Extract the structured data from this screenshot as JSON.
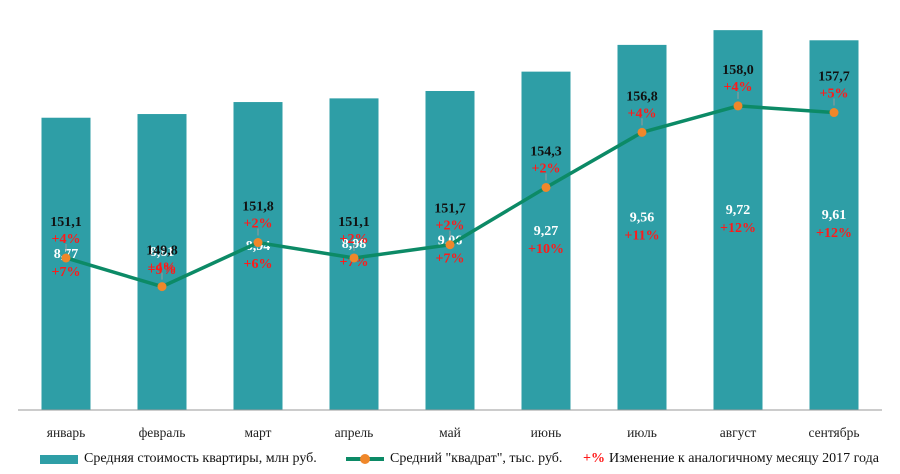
{
  "chart_data": {
    "type": "bar+line",
    "categories": [
      "январь",
      "февраль",
      "март",
      "апрель",
      "май",
      "июнь",
      "июль",
      "август",
      "сентябрь"
    ],
    "series": [
      {
        "name": "Средняя стоимость квартиры, млн руб.",
        "type": "bar",
        "values": [
          8.77,
          8.81,
          8.94,
          8.98,
          9.06,
          9.27,
          9.56,
          9.72,
          9.61
        ],
        "labels": [
          "8,77",
          "8,81",
          "8,94",
          "8,98",
          "9,06",
          "9,27",
          "9,56",
          "9,72",
          "9,61"
        ],
        "yoy_change": [
          "+7%",
          "+9%",
          "+6%",
          "+7%",
          "+7%",
          "+10%",
          "+11%",
          "+12%",
          "+12%"
        ],
        "color": "#2e9ea6"
      },
      {
        "name": "Средний \"квадрат\", тыс. руб.",
        "type": "line",
        "values": [
          151.1,
          149.8,
          151.8,
          151.1,
          151.7,
          154.3,
          156.8,
          158.0,
          157.7
        ],
        "labels": [
          "151,1",
          "149,8",
          "151,8",
          "151,1",
          "151,7",
          "154,3",
          "156,8",
          "158,0",
          "157,7"
        ],
        "yoy_change": [
          "+4%",
          "+4%",
          "+2%",
          "+2%",
          "+2%",
          "+2%",
          "+4%",
          "+4%",
          "+5%"
        ],
        "line_color": "#0c8a66",
        "marker_color": "#f0872a"
      }
    ],
    "legend": {
      "bar": "Средняя стоимость квартиры, млн руб.",
      "line": "Средний \"квадрат\", тыс. руб.",
      "pct_marker": "+%",
      "pct_text": "Изменение к аналогичному месяцу 2017 года"
    },
    "legend_position": "bottom",
    "grid": false,
    "bar_ylim": [
      5.6,
      9.83
    ],
    "line_ylim": [
      144.2,
      161.9
    ]
  }
}
